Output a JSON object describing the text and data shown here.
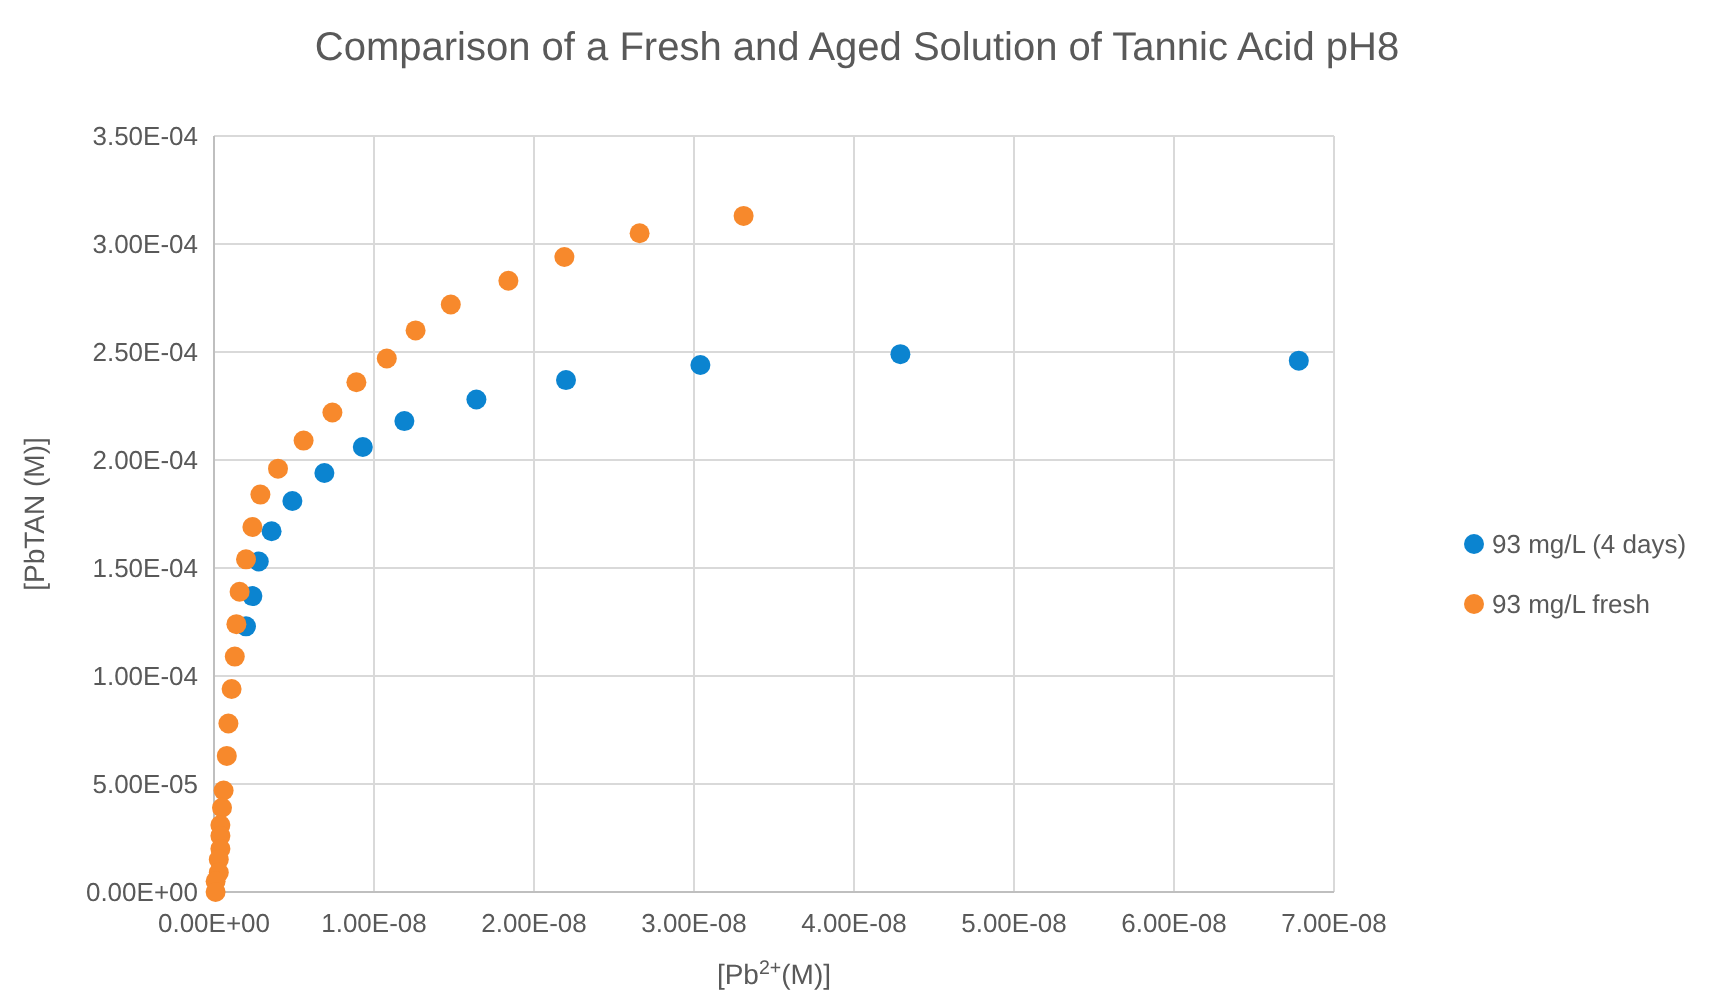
{
  "chart_data": {
    "type": "scatter",
    "title": "Comparison of a Fresh and Aged Solution of Tannic Acid pH8",
    "xlabel": "[Pb$^{2+}$(M)]",
    "ylabel": "[PbTAN (M)]",
    "xlim": [
      0,
      7e-08
    ],
    "ylim": [
      0,
      0.00035
    ],
    "xticks": [
      {
        "value": 0,
        "label": "0.00E+00"
      },
      {
        "value": 1e-08,
        "label": "1.00E-08"
      },
      {
        "value": 2e-08,
        "label": "2.00E-08"
      },
      {
        "value": 3e-08,
        "label": "3.00E-08"
      },
      {
        "value": 4e-08,
        "label": "4.00E-08"
      },
      {
        "value": 5e-08,
        "label": "5.00E-08"
      },
      {
        "value": 6e-08,
        "label": "6.00E-08"
      },
      {
        "value": 7e-08,
        "label": "7.00E-08"
      }
    ],
    "yticks": [
      {
        "value": 0,
        "label": "0.00E+00"
      },
      {
        "value": 5e-05,
        "label": "5.00E-05"
      },
      {
        "value": 0.0001,
        "label": "1.00E-04"
      },
      {
        "value": 0.00015,
        "label": "1.50E-04"
      },
      {
        "value": 0.0002,
        "label": "2.00E-04"
      },
      {
        "value": 0.00025,
        "label": "2.50E-04"
      },
      {
        "value": 0.0003,
        "label": "3.00E-04"
      },
      {
        "value": 0.00035,
        "label": "3.50E-04"
      }
    ],
    "grid": true,
    "legend": "right",
    "marker": "circle",
    "series": [
      {
        "name": "93 mg/L (4 days)",
        "color": "#0b84d0",
        "x": [
          6.78e-08,
          4.29e-08,
          3.04e-08,
          2.2e-08,
          1.64e-08,
          1.19e-08,
          9.3e-09,
          6.9e-09,
          4.9e-09,
          3.6e-09,
          2.8e-09,
          2.4e-09,
          2e-09
        ],
        "values": [
          0.000246,
          0.000249,
          0.000244,
          0.000237,
          0.000228,
          0.000218,
          0.000206,
          0.000194,
          0.000181,
          0.000167,
          0.000153,
          0.000137,
          0.000123
        ]
      },
      {
        "name": "93 mg/L fresh",
        "color": "#f7892c",
        "x": [
          3.31e-08,
          2.66e-08,
          2.19e-08,
          1.84e-08,
          1.48e-08,
          1.26e-08,
          1.08e-08,
          8.9e-09,
          7.4e-09,
          5.6e-09,
          4e-09,
          2.9e-09,
          2.4e-09,
          2e-09,
          1.6e-09,
          1.4e-09,
          1.3e-09,
          1.1e-09,
          9e-10,
          8e-10,
          6e-10,
          5e-10,
          4e-10,
          4e-10,
          4e-10,
          3e-10,
          3e-10,
          1e-10,
          1e-10
        ],
        "values": [
          0.000313,
          0.000305,
          0.000294,
          0.000283,
          0.000272,
          0.00026,
          0.000247,
          0.000236,
          0.000222,
          0.000209,
          0.000196,
          0.000184,
          0.000169,
          0.000154,
          0.000139,
          0.000124,
          0.000109,
          9.4e-05,
          7.8e-05,
          6.3e-05,
          4.7e-05,
          3.9e-05,
          3.1e-05,
          2.6e-05,
          2e-05,
          1.5e-05,
          9e-06,
          5e-06,
          0
        ]
      }
    ]
  }
}
